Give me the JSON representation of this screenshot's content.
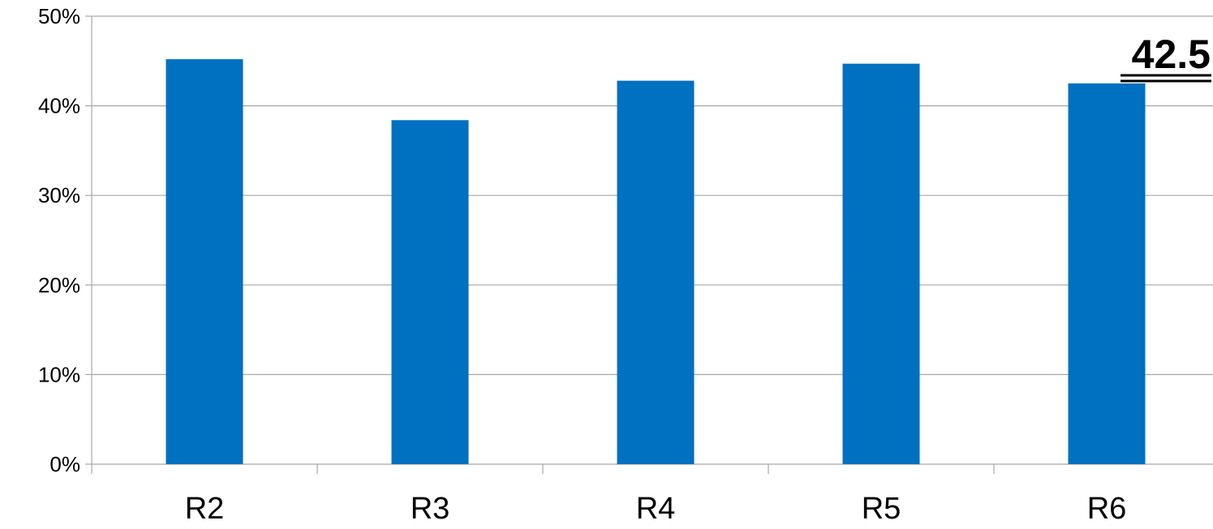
{
  "chart_data": {
    "type": "bar",
    "categories": [
      "R2",
      "R3",
      "R4",
      "R5",
      "R6"
    ],
    "values": [
      45.2,
      38.4,
      42.8,
      44.7,
      42.5
    ],
    "ylim": [
      0,
      50
    ],
    "y_ticks": [
      0,
      10,
      20,
      30,
      40,
      50
    ],
    "y_tick_format": "%",
    "grid": true,
    "bar_color": "#0070c0",
    "grid_color": "#a6a6a6",
    "annotation": "42.5"
  }
}
